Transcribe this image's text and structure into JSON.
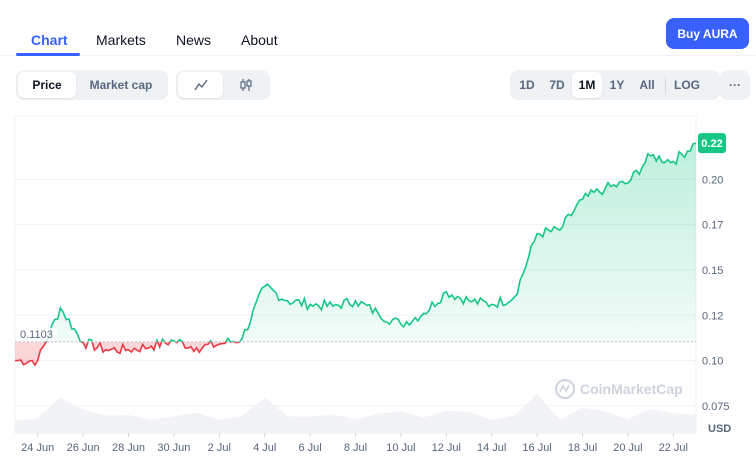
{
  "nav": {
    "tabs": [
      {
        "label": "Chart",
        "active": true
      },
      {
        "label": "Markets",
        "active": false
      },
      {
        "label": "News",
        "active": false
      },
      {
        "label": "About",
        "active": false
      }
    ],
    "buy_label": "Buy AURA"
  },
  "toolbar": {
    "metric_tabs": [
      {
        "label": "Price",
        "active": true
      },
      {
        "label": "Market cap",
        "active": false
      }
    ],
    "chart_style_icons": [
      "line-chart-icon",
      "candlestick-icon"
    ],
    "ranges": [
      {
        "label": "1D",
        "active": false
      },
      {
        "label": "7D",
        "active": false
      },
      {
        "label": "1M",
        "active": true
      },
      {
        "label": "1Y",
        "active": false
      },
      {
        "label": "All",
        "active": false
      }
    ],
    "log_label": "LOG",
    "more_label": "···"
  },
  "watermark": "CoinMarketCap",
  "colors": {
    "accent": "#3861fb",
    "up": "#16c784",
    "down": "#ea3943",
    "baseline": "#b8bec8"
  },
  "chart_data": {
    "type": "area",
    "x": [
      "23 Jun",
      "24 Jun",
      "25 Jun",
      "26 Jun",
      "27 Jun",
      "28 Jun",
      "29 Jun",
      "30 Jun",
      "1 Jul",
      "2 Jul",
      "3 Jul",
      "4 Jul",
      "5 Jul",
      "6 Jul",
      "7 Jul",
      "8 Jul",
      "9 Jul",
      "10 Jul",
      "11 Jul",
      "12 Jul",
      "13 Jul",
      "14 Jul",
      "15 Jul",
      "16 Jul",
      "17 Jul",
      "18 Jul",
      "19 Jul",
      "20 Jul",
      "21 Jul",
      "22 Jul",
      "23 Jul"
    ],
    "series": [
      {
        "values": [
          0.1,
          0.1,
          0.129,
          0.11,
          0.106,
          0.106,
          0.108,
          0.111,
          0.107,
          0.109,
          0.112,
          0.141,
          0.133,
          0.131,
          0.13,
          0.133,
          0.126,
          0.12,
          0.126,
          0.138,
          0.133,
          0.131,
          0.135,
          0.17,
          0.172,
          0.189,
          0.195,
          0.198,
          0.213,
          0.21,
          0.22
        ]
      }
    ],
    "baseline": 0.1103,
    "baseline_label": "0.1103",
    "current_label": "0.22",
    "x_tick_labels": [
      "24 Jun",
      "26 Jun",
      "28 Jun",
      "30 Jun",
      "2 Jul",
      "4 Jul",
      "6 Jul",
      "8 Jul",
      "10 Jul",
      "12 Jul",
      "14 Jul",
      "16 Jul",
      "18 Jul",
      "20 Jul",
      "22 Jul"
    ],
    "y_ticks": [
      0.075,
      0.1,
      0.125,
      0.15,
      0.175,
      0.2
    ],
    "y_tick_labels": [
      "0.075",
      "0.10",
      "0.12",
      "0.15",
      "0.17",
      "0.20"
    ],
    "ylim": [
      0.06,
      0.235
    ],
    "currency_label": "USD",
    "grid": true
  }
}
